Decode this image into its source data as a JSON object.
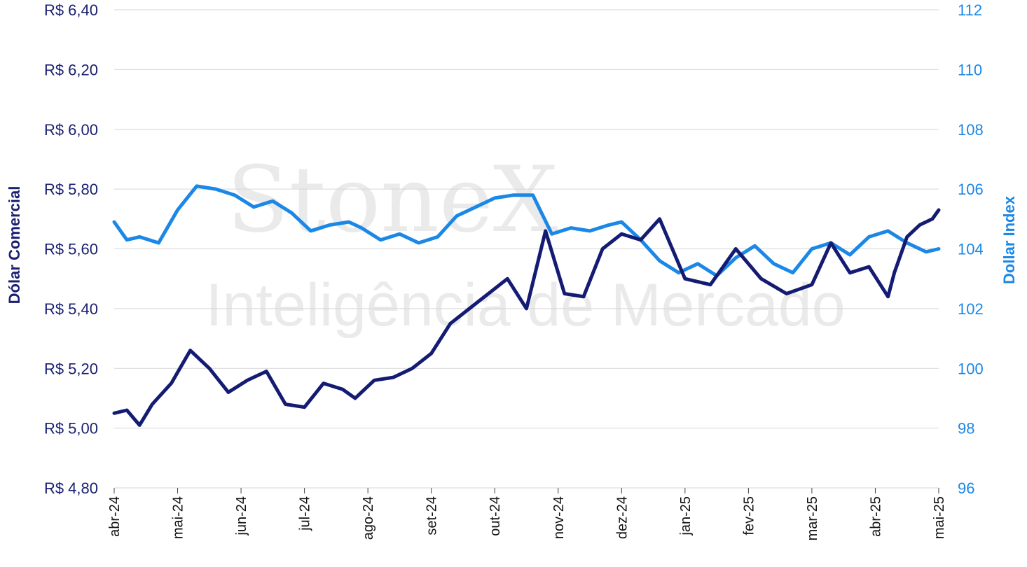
{
  "watermark": {
    "brand": "StoneX",
    "subtitle": "Inteligência de Mercado"
  },
  "colors": {
    "dolar": "#141b73",
    "dxy": "#1b87e6",
    "grid": "#d6d6d6"
  },
  "chart_data": {
    "type": "line",
    "title": "",
    "grid": true,
    "legend": "none",
    "x_labels": [
      "abr-24",
      "mai-24",
      "jun-24",
      "jul-24",
      "ago-24",
      "set-24",
      "out-24",
      "nov-24",
      "dez-24",
      "jan-25",
      "fev-25",
      "mar-25",
      "abr-25",
      "mai-25"
    ],
    "left_axis": {
      "label": "Dólar Comercial",
      "range": [
        4.8,
        6.4
      ],
      "ticks": [
        "R$ 4,80",
        "R$ 5,00",
        "R$ 5,20",
        "R$ 5,40",
        "R$ 5,60",
        "R$ 5,80",
        "R$ 6,00",
        "R$ 6,20",
        "R$ 6,40"
      ]
    },
    "right_axis": {
      "label": "Dollar Index",
      "range": [
        96,
        112
      ],
      "ticks": [
        "96",
        "98",
        "100",
        "102",
        "104",
        "106",
        "108",
        "110",
        "112"
      ]
    },
    "series": [
      {
        "axis": "left",
        "t": [
          0,
          0.2,
          0.4,
          0.6,
          0.9,
          1.2,
          1.5,
          1.8,
          2.1,
          2.4,
          2.7,
          3.0,
          3.3,
          3.6,
          3.8,
          4.1,
          4.4,
          4.7,
          5.0,
          5.3,
          5.6,
          5.9,
          6.2,
          6.5,
          6.8,
          7.1,
          7.4,
          7.7,
          8.0,
          8.3,
          8.6,
          9.0,
          9.4,
          9.8,
          10.2,
          10.6,
          11.0,
          11.3,
          11.6,
          11.9,
          12.2,
          12.3,
          12.5,
          12.7,
          12.9,
          13.0
        ],
        "y": [
          5.05,
          5.06,
          5.01,
          5.08,
          5.15,
          5.26,
          5.2,
          5.12,
          5.16,
          5.19,
          5.08,
          5.07,
          5.15,
          5.13,
          5.1,
          5.16,
          5.17,
          5.2,
          5.25,
          5.35,
          5.4,
          5.45,
          5.5,
          5.4,
          5.66,
          5.45,
          5.44,
          5.6,
          5.65,
          5.63,
          5.7,
          5.5,
          5.48,
          5.6,
          5.5,
          5.45,
          5.48,
          5.62,
          5.52,
          5.54,
          5.44,
          5.52,
          5.64,
          5.68,
          5.7,
          5.73
        ]
      },
      {
        "axis": "right",
        "t": [
          0,
          0.2,
          0.4,
          0.7,
          1.0,
          1.3,
          1.6,
          1.9,
          2.2,
          2.5,
          2.8,
          3.1,
          3.4,
          3.7,
          3.9,
          4.2,
          4.5,
          4.8,
          5.1,
          5.4,
          5.7,
          6.0,
          6.3,
          6.6,
          6.9,
          7.2,
          7.5,
          7.8,
          8.0,
          8.3,
          8.6,
          8.9,
          9.2,
          9.5,
          9.8,
          10.1,
          10.4,
          10.7,
          11.0,
          11.3,
          11.6,
          11.9,
          12.2,
          12.5,
          12.8,
          13.0
        ],
        "y": [
          104.9,
          104.3,
          104.4,
          104.2,
          105.3,
          106.1,
          106.0,
          105.8,
          105.4,
          105.6,
          105.2,
          104.6,
          104.8,
          104.9,
          104.7,
          104.3,
          104.5,
          104.2,
          104.4,
          105.1,
          105.4,
          105.7,
          105.8,
          105.8,
          104.5,
          104.7,
          104.6,
          104.8,
          104.9,
          104.3,
          103.6,
          103.2,
          103.5,
          103.1,
          103.7,
          104.1,
          103.5,
          103.2,
          104.0,
          104.2,
          103.8,
          104.4,
          104.6,
          104.2,
          103.9,
          104.0
        ]
      }
    ]
  }
}
